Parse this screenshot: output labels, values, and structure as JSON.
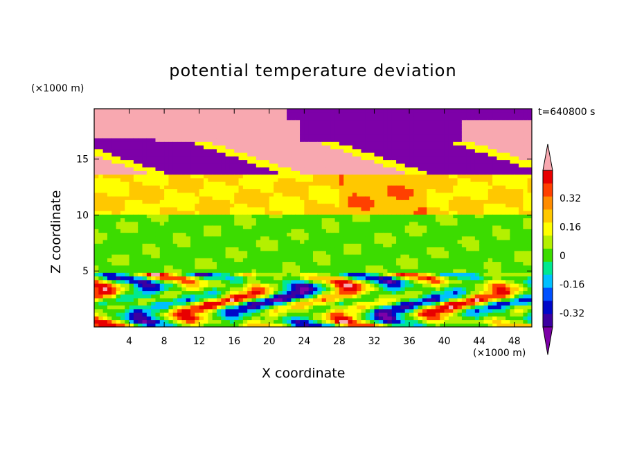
{
  "chart_data": {
    "type": "heatmap",
    "title": "potential temperature deviation",
    "xlabel": "X coordinate",
    "ylabel": "Z coordinate",
    "x_unit": "(×1000 m)",
    "y_unit": "(×1000 m)",
    "time_label": "t=640800 s",
    "xlim": [
      0,
      50
    ],
    "ylim": [
      0,
      19.5
    ],
    "x_ticks": [
      4,
      8,
      12,
      16,
      20,
      24,
      28,
      32,
      36,
      40,
      44,
      48
    ],
    "y_ticks": [
      5,
      10,
      15
    ],
    "colorbar": {
      "levels": [
        -0.4,
        -0.32,
        -0.24,
        -0.16,
        -0.08,
        0,
        0.08,
        0.16,
        0.24,
        0.32,
        0.4
      ],
      "colors": [
        "#7d00a8",
        "#3c00a0",
        "#0008c8",
        "#0050ff",
        "#00c0ff",
        "#00e890",
        "#3cdc00",
        "#b4f000",
        "#ffff00",
        "#ffc800",
        "#ff8c00",
        "#ff4000",
        "#e80000",
        "#f8a8b0"
      ],
      "tick_labels": [
        "0.32",
        "0.16",
        "0",
        "-0.16",
        "-0.32"
      ],
      "extend": "both"
    },
    "layers": [
      {
        "z_range": [
          0,
          5
        ],
        "description": "turbulent boundary layer, values roughly -0.4 to 0.4"
      },
      {
        "z_range": [
          5,
          10
        ],
        "value_approx": -0.02
      },
      {
        "z_range": [
          10,
          13.5
        ],
        "value_approx": 0.16
      },
      {
        "z_range": [
          13.5,
          16.5
        ],
        "value_approx": -0.4
      },
      {
        "z_range": [
          16.5,
          19.5
        ],
        "value_approx": 0.4
      }
    ]
  }
}
